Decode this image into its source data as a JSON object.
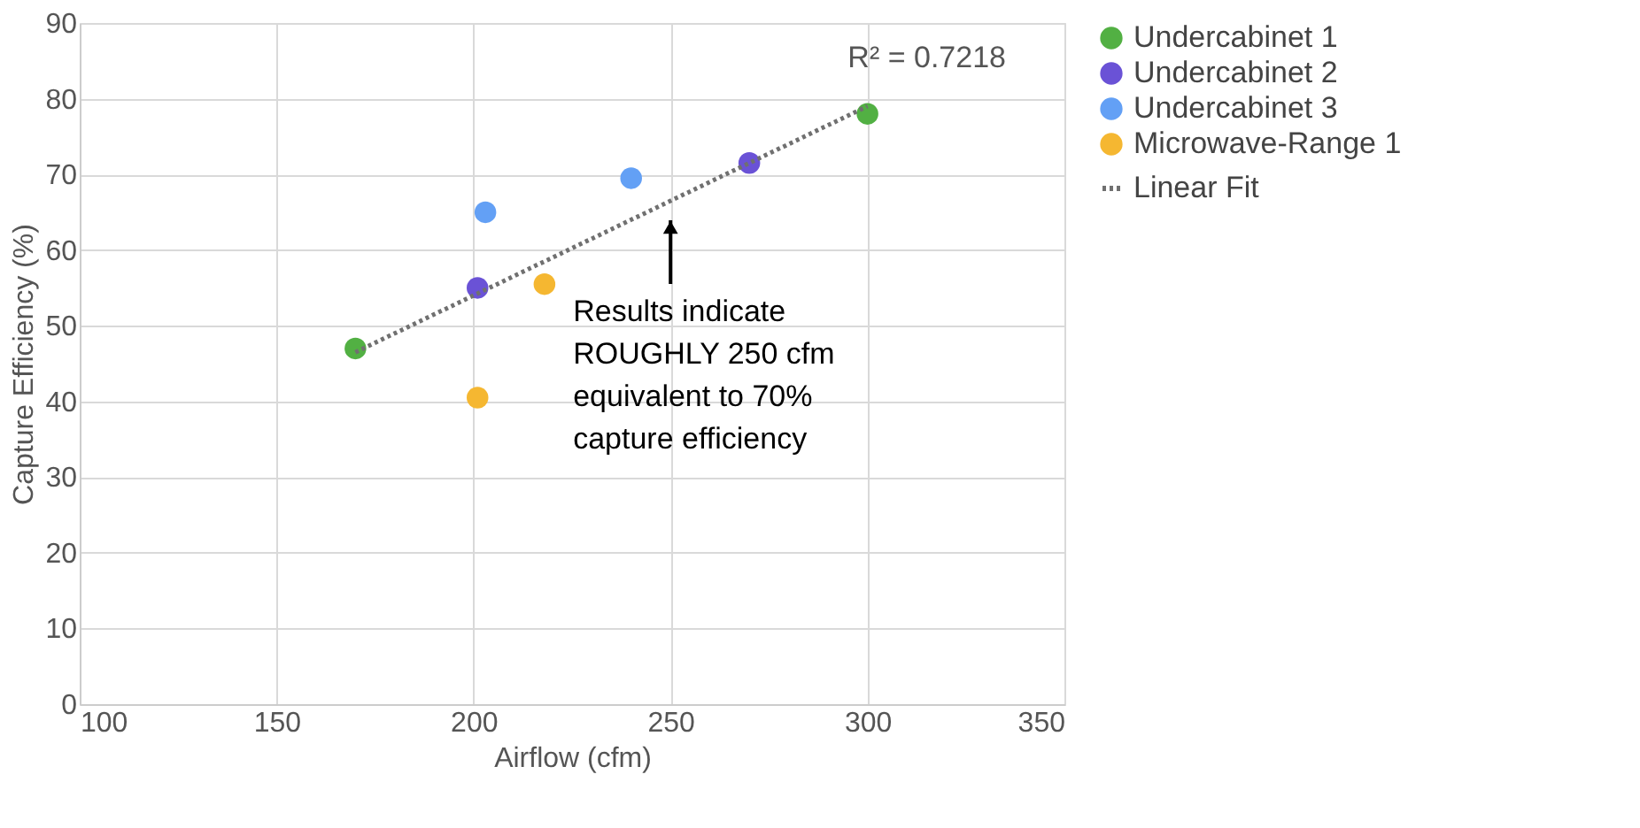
{
  "chart_data": {
    "type": "scatter",
    "xlabel": "Airflow (cfm)",
    "ylabel": "Capture Efficiency (%)",
    "xlim": [
      100,
      350
    ],
    "xticks": [
      100,
      150,
      200,
      250,
      300,
      350
    ],
    "ylim": [
      0,
      90
    ],
    "yticks": [
      0,
      10,
      20,
      30,
      40,
      50,
      60,
      70,
      80,
      90
    ],
    "grid": true,
    "legend": "right",
    "marker": "circle",
    "series": [
      {
        "name": "Undercabinet 1",
        "color": "#52b043",
        "x": [
          170,
          300
        ],
        "values": [
          47,
          78
        ]
      },
      {
        "name": "Undercabinet 2",
        "color": "#6a52d6",
        "x": [
          201,
          270
        ],
        "values": [
          55,
          71.5
        ]
      },
      {
        "name": "Undercabinet 3",
        "color": "#63a0f5",
        "x": [
          203,
          240
        ],
        "values": [
          65,
          69.5
        ]
      },
      {
        "name": "Microwave-Range 1",
        "color": "#f5b731",
        "x": [
          201,
          218
        ],
        "values": [
          40.5,
          55.5
        ]
      },
      {
        "name": "Linear Fit",
        "type": "line",
        "line_style": "dotted",
        "marker": "none",
        "color": "#707070",
        "x": [
          170,
          300
        ],
        "values": [
          46.5,
          79
        ]
      }
    ],
    "annotations": [
      "R² = 0.7218",
      "Results indicate\nROUGHLY 250 cfm\nequivalent to 70%\ncapture efficiency"
    ]
  }
}
